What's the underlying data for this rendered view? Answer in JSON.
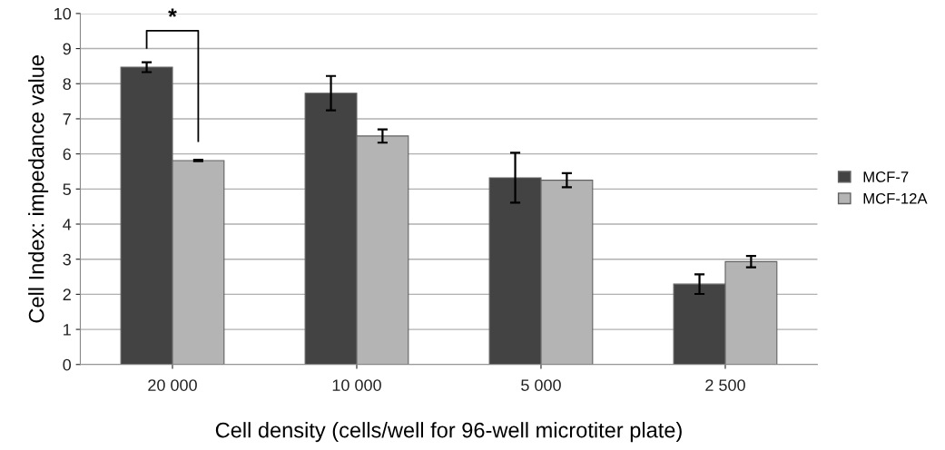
{
  "chart_data": {
    "type": "bar",
    "xlabel": "Cell density (cells/well for 96-well microtiter plate)",
    "ylabel": "Cell Index: impedance value",
    "categories": [
      "20 000",
      "10 000",
      "5 000",
      "2 500"
    ],
    "series": [
      {
        "name": "MCF-7",
        "color": "#434343",
        "values": [
          8.47,
          7.73,
          5.32,
          2.29
        ],
        "errors": [
          0.14,
          0.49,
          0.71,
          0.28
        ]
      },
      {
        "name": "MCF-12A",
        "color": "#b4b4b4",
        "values": [
          5.81,
          6.51,
          5.25,
          2.93
        ],
        "errors": [
          0.02,
          0.19,
          0.2,
          0.16
        ]
      }
    ],
    "ylim": [
      0,
      10
    ],
    "yticks": [
      0,
      1,
      2,
      3,
      4,
      5,
      6,
      7,
      8,
      9,
      10
    ],
    "grid": "y",
    "legend": "right",
    "annotations": [
      "*"
    ]
  }
}
